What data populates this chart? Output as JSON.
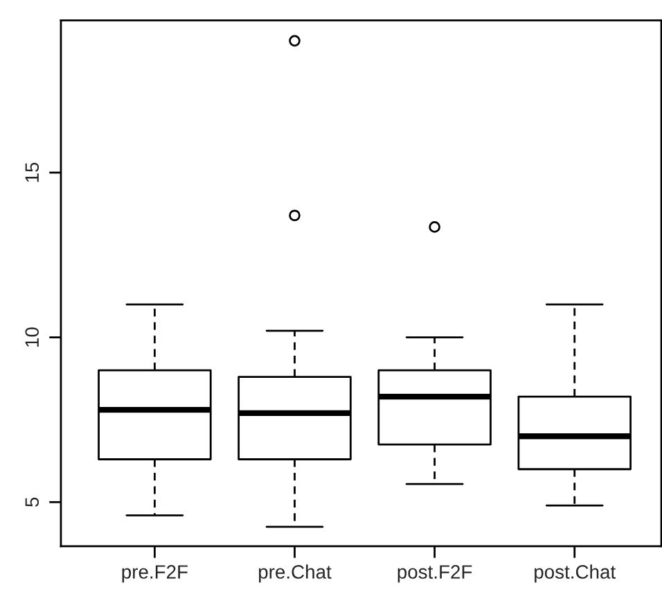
{
  "chart_data": {
    "type": "box",
    "categories": [
      "pre.F2F",
      "pre.Chat",
      "post.F2F",
      "post.Chat"
    ],
    "boxes": [
      {
        "low": 4.6,
        "q1": 6.3,
        "median": 7.8,
        "q3": 9.0,
        "high": 11.0
      },
      {
        "low": 4.25,
        "q1": 6.3,
        "median": 7.7,
        "q3": 8.8,
        "high": 10.2,
        "outliers": [
          19.0,
          13.7
        ]
      },
      {
        "low": 5.55,
        "q1": 6.75,
        "median": 8.2,
        "q3": 9.0,
        "high": 10.0,
        "outliers": [
          13.35
        ]
      },
      {
        "low": 4.9,
        "q1": 6.0,
        "median": 7.0,
        "q3": 8.2,
        "high": 11.0
      }
    ],
    "ylim": [
      3.66,
      19.62
    ],
    "yticks": [
      5,
      10,
      15
    ],
    "grid": false
  }
}
